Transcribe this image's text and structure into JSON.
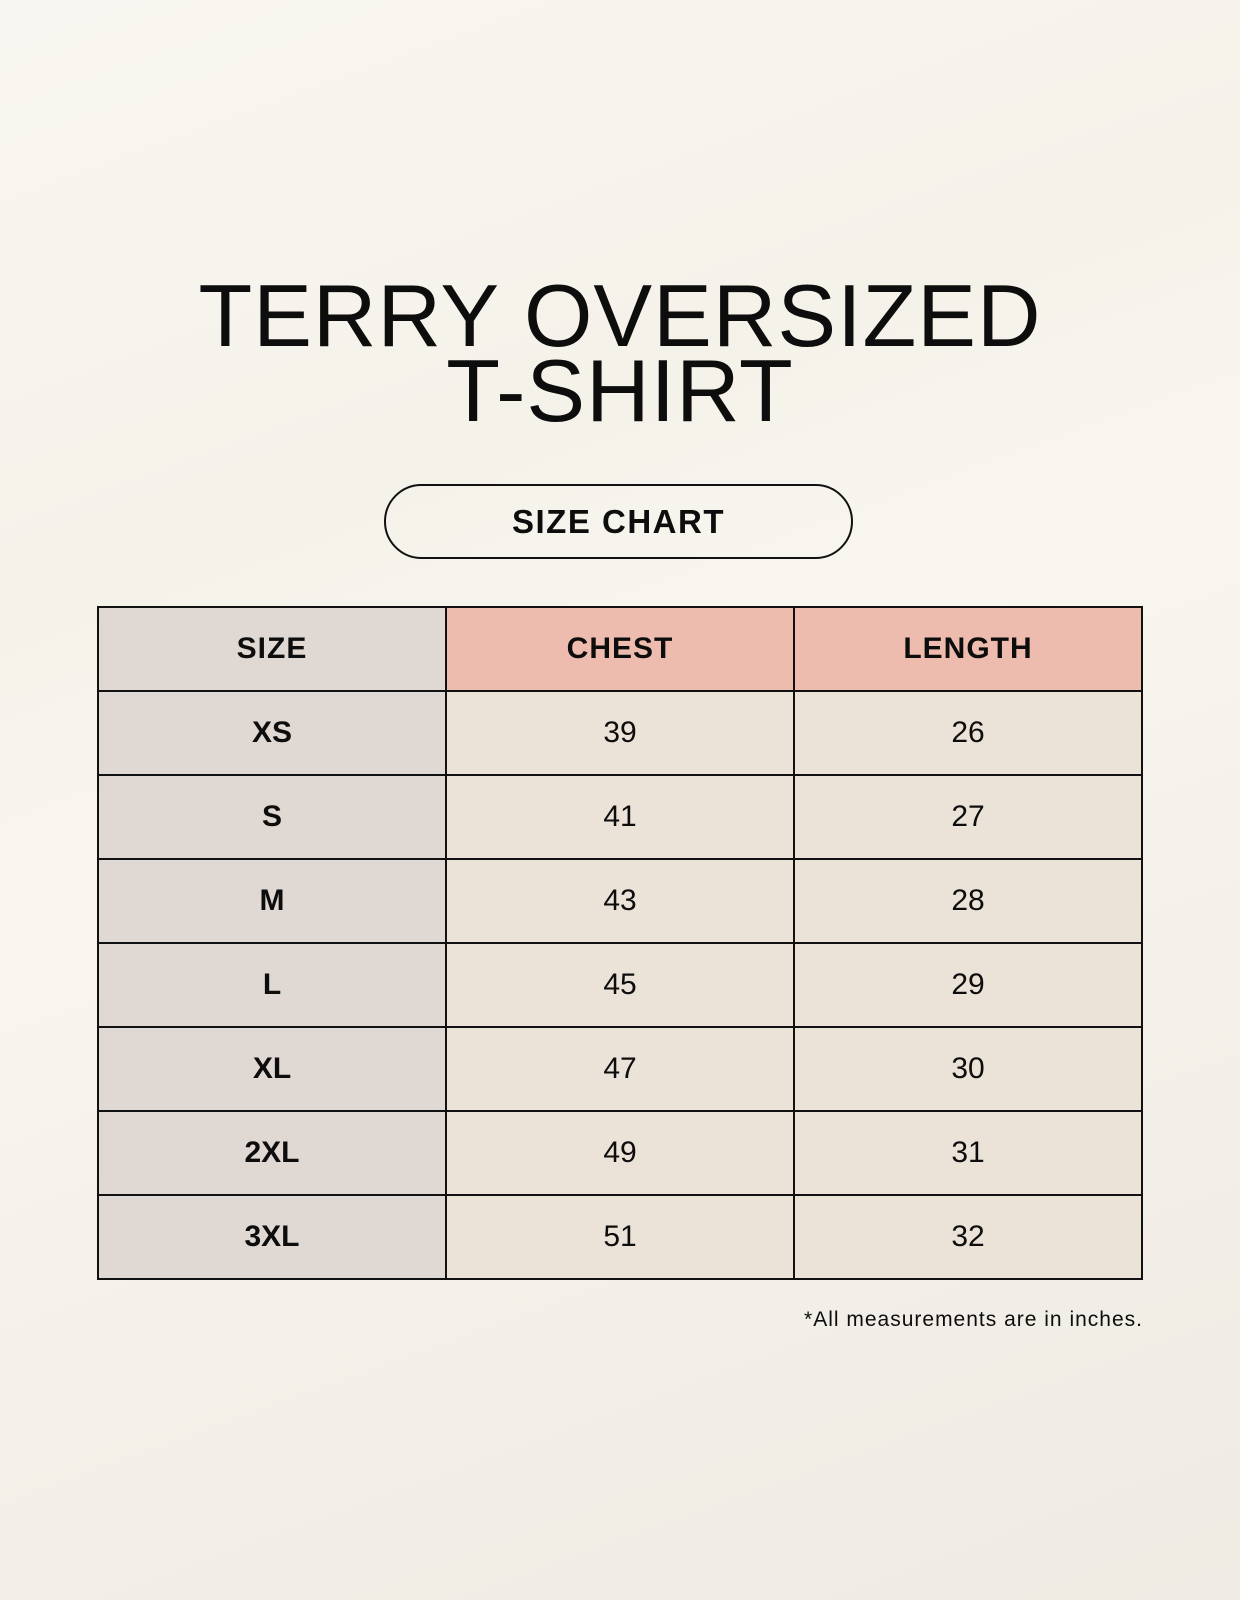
{
  "title": {
    "line1": "TERRY OVERSIZED",
    "line2": "T-SHIRT"
  },
  "badge": "SIZE CHART",
  "table": {
    "headers": [
      "SIZE",
      "CHEST",
      "LENGTH"
    ],
    "rows": [
      {
        "size": "XS",
        "chest": "39",
        "length": "26"
      },
      {
        "size": "S",
        "chest": "41",
        "length": "27"
      },
      {
        "size": "M",
        "chest": "43",
        "length": "28"
      },
      {
        "size": "L",
        "chest": "45",
        "length": "29"
      },
      {
        "size": "XL",
        "chest": "47",
        "length": "30"
      },
      {
        "size": "2XL",
        "chest": "49",
        "length": "31"
      },
      {
        "size": "3XL",
        "chest": "51",
        "length": "32"
      }
    ]
  },
  "footnote": "*All measurements are in inches.",
  "colors": {
    "size_column": "#e0d8d3",
    "measure_header": "#eebcae",
    "value_cells": "#ebe2d8"
  }
}
